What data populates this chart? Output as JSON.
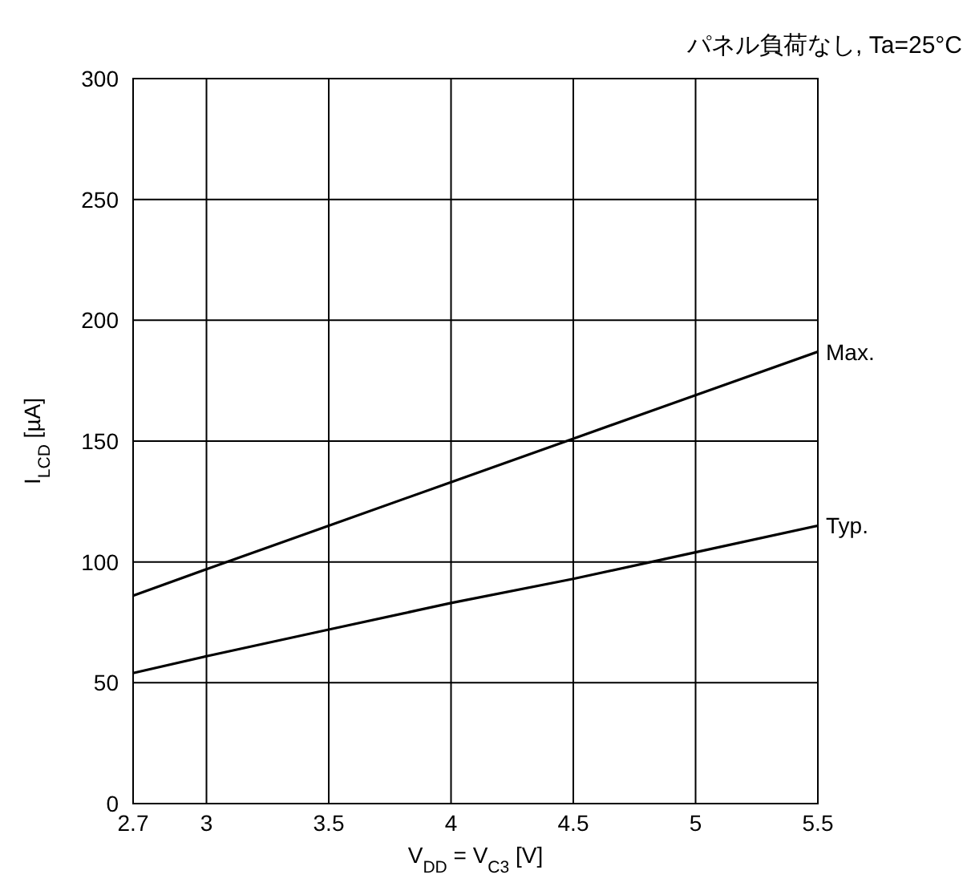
{
  "chart_data": {
    "type": "line",
    "title": "パネル負荷なし, Ta=25°C",
    "xlabel": "V$_{DD}$ = V$_{C3}$ [V]",
    "ylabel": "I$_{LCD}$ [µA]",
    "x": [
      2.7,
      3,
      3.5,
      4,
      4.5,
      5,
      5.5
    ],
    "series": [
      {
        "name": "Max.",
        "color": "#000000",
        "values": [
          86,
          97,
          115,
          133,
          151,
          169,
          187
        ]
      },
      {
        "name": "Typ.",
        "color": "#000000",
        "values": [
          54,
          61,
          72,
          83,
          93,
          104,
          115
        ]
      }
    ],
    "xlim": [
      2.7,
      5.5
    ],
    "ylim": [
      0,
      300
    ],
    "xticks": [
      2.7,
      3,
      3.5,
      4,
      4.5,
      5,
      5.5
    ],
    "yticks": [
      0,
      50,
      100,
      150,
      200,
      250,
      300
    ],
    "grid": true,
    "marker": "none",
    "line_style": "solid"
  }
}
